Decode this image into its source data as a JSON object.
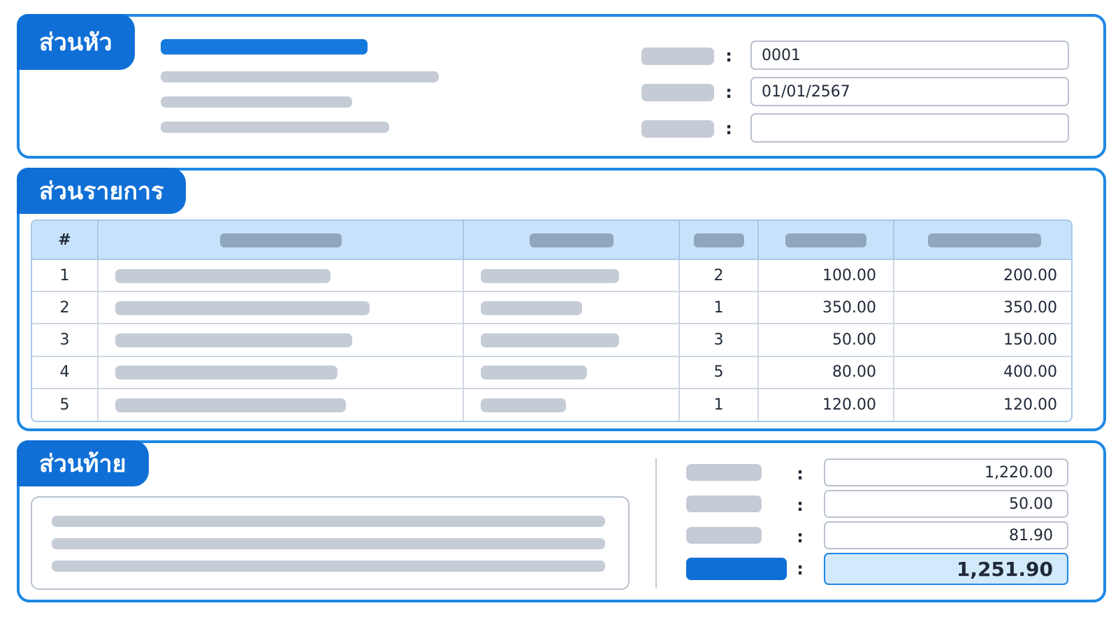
{
  "header_section": {
    "title": "ส่วนหัว",
    "fields": [
      {
        "value": "0001"
      },
      {
        "value": "01/01/2567"
      },
      {
        "value": ""
      }
    ],
    "colon": ":"
  },
  "items_section": {
    "title": "ส่วนรายการ",
    "columns": [
      {
        "label": "#"
      }
    ],
    "rows": [
      {
        "no": "1",
        "qty": "2",
        "price": "100.00",
        "amount": "200.00"
      },
      {
        "no": "2",
        "qty": "1",
        "price": "350.00",
        "amount": "350.00"
      },
      {
        "no": "3",
        "qty": "3",
        "price": "50.00",
        "amount": "150.00"
      },
      {
        "no": "4",
        "qty": "5",
        "price": "80.00",
        "amount": "400.00"
      },
      {
        "no": "5",
        "qty": "1",
        "price": "120.00",
        "amount": "120.00"
      }
    ]
  },
  "footer_section": {
    "title": "ส่วนท้าย",
    "totals": [
      {
        "value": "1,220.00"
      },
      {
        "value": "50.00"
      },
      {
        "value": "81.90"
      },
      {
        "value": "1,251.90"
      }
    ],
    "colon": ":"
  },
  "colors": {
    "accent": "#1e88e5",
    "tab": "#0f6fd6",
    "header_fill": "#c7e3fb",
    "placeholder": "#c5ccd6"
  }
}
